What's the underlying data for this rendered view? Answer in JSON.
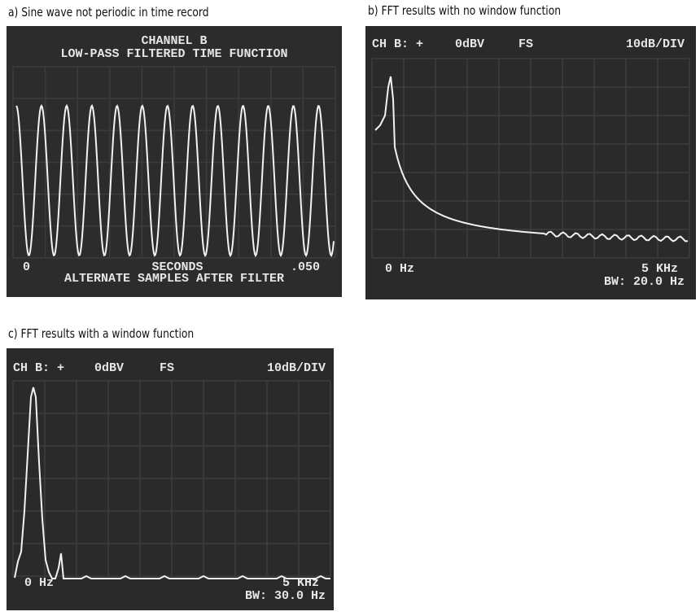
{
  "panels": [
    {
      "caption": "a) Sine wave not periodic in time record",
      "screen": {
        "header": "CHANNEL B",
        "subheader": "LOW-PASS FILTERED TIME FUNCTION",
        "x_start": "0",
        "x_unit": "SECONDS",
        "x_end": ".050",
        "footer": "ALTERNATE SAMPLES AFTER FILTER"
      }
    },
    {
      "caption": "b) FFT results with no window function",
      "screen": {
        "channel": "CH B: +",
        "reference": "0dBV",
        "mode": "FS",
        "scale": "10dB/DIV",
        "x_start": "0 Hz",
        "x_end": "5 KHz",
        "bandwidth": "BW: 20.0 Hz"
      }
    },
    {
      "caption": "c) FFT results with a window function",
      "screen": {
        "channel": "CH B: +",
        "reference": "0dBV",
        "mode": "FS",
        "scale": "10dB/DIV",
        "x_start": "0 Hz",
        "x_end": "5 KHz",
        "bandwidth": "BW: 30.0 Hz"
      }
    }
  ]
}
